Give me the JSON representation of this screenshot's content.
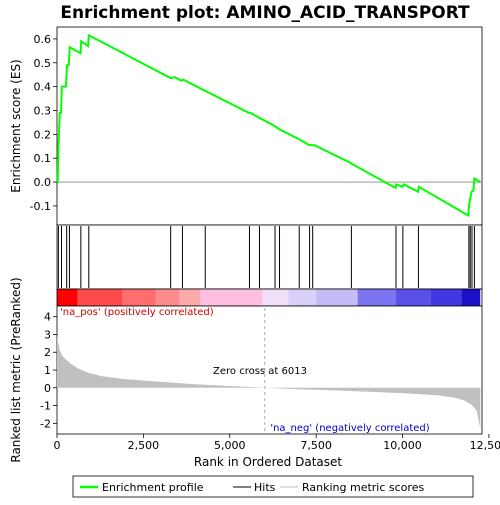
{
  "chart_data": [
    {
      "type": "line",
      "title": "Enrichment plot: AMINO_ACID_TRANSPORT",
      "ylabel": "Enrichment score (ES)",
      "ylim": [
        -0.18,
        0.65
      ],
      "yticks": [
        "-0.1",
        "0.0",
        "0.1",
        "0.2",
        "0.3",
        "0.4",
        "0.5",
        "0.6"
      ],
      "xlim": [
        0,
        12300
      ],
      "series": [
        {
          "name": "Enrichment profile",
          "color": "#00ff00",
          "points": [
            [
              0,
              0.0
            ],
            [
              20,
              0.0
            ],
            [
              40,
              0.14
            ],
            [
              80,
              0.29
            ],
            [
              120,
              0.29
            ],
            [
              140,
              0.4
            ],
            [
              260,
              0.4
            ],
            [
              290,
              0.49
            ],
            [
              340,
              0.49
            ],
            [
              370,
              0.565
            ],
            [
              680,
              0.54
            ],
            [
              700,
              0.59
            ],
            [
              900,
              0.57
            ],
            [
              920,
              0.615
            ],
            [
              3300,
              0.435
            ],
            [
              3400,
              0.44
            ],
            [
              3600,
              0.425
            ],
            [
              3650,
              0.43
            ],
            [
              4250,
              0.385
            ],
            [
              4320,
              0.38
            ],
            [
              5550,
              0.29
            ],
            [
              5600,
              0.29
            ],
            [
              5850,
              0.27
            ],
            [
              6300,
              0.235
            ],
            [
              6450,
              0.22
            ],
            [
              7000,
              0.18
            ],
            [
              7300,
              0.155
            ],
            [
              7450,
              0.155
            ],
            [
              8500,
              0.08
            ],
            [
              8550,
              0.075
            ],
            [
              9800,
              -0.025
            ],
            [
              9820,
              -0.01
            ],
            [
              10000,
              -0.02
            ],
            [
              10030,
              -0.01
            ],
            [
              10450,
              -0.04
            ],
            [
              10470,
              -0.02
            ],
            [
              11900,
              -0.14
            ],
            [
              11930,
              -0.09
            ],
            [
              12000,
              -0.04
            ],
            [
              12050,
              -0.035
            ],
            [
              12080,
              0.015
            ],
            [
              12250,
              0.0
            ]
          ]
        }
      ],
      "hits": [
        40,
        130,
        280,
        360,
        690,
        920,
        3290,
        3630,
        4290,
        5570,
        5860,
        6310,
        6440,
        7010,
        7310,
        7400,
        8520,
        9810,
        10010,
        10460,
        11920,
        11960,
        12010,
        12080
      ],
      "legend": [
        "Enrichment profile",
        "Hits",
        "Ranking metric scores"
      ]
    },
    {
      "type": "area",
      "xlabel": "Rank in Ordered Dataset",
      "ylabel": "Ranked list metric (PreRanked)",
      "ylim": [
        -2.6,
        4.6
      ],
      "yticks": [
        "-2",
        "-1",
        "0",
        "1",
        "2",
        "3",
        "4"
      ],
      "xlim": [
        0,
        12300
      ],
      "xticks": [
        "0",
        "2,500",
        "5,000",
        "7,500",
        "10,000",
        "12,500"
      ],
      "series": [
        {
          "name": "Ranking metric scores",
          "color": "#c0c0c0",
          "points": [
            [
              0,
              2.9
            ],
            [
              30,
              2.6
            ],
            [
              80,
              2.1
            ],
            [
              150,
              1.8
            ],
            [
              250,
              1.6
            ],
            [
              400,
              1.35
            ],
            [
              600,
              1.1
            ],
            [
              900,
              0.85
            ],
            [
              1300,
              0.65
            ],
            [
              2000,
              0.48
            ],
            [
              3000,
              0.33
            ],
            [
              4000,
              0.2
            ],
            [
              5000,
              0.1
            ],
            [
              6013,
              0.0
            ],
            [
              7000,
              -0.08
            ],
            [
              8000,
              -0.15
            ],
            [
              9000,
              -0.22
            ],
            [
              10000,
              -0.3
            ],
            [
              11000,
              -0.42
            ],
            [
              11500,
              -0.55
            ],
            [
              11800,
              -0.72
            ],
            [
              12000,
              -0.95
            ],
            [
              12150,
              -1.3
            ],
            [
              12250,
              -2.3
            ]
          ]
        }
      ],
      "annotations": {
        "zero_cross": "Zero cross at 6013",
        "pos_label": "'na_pos' (positively correlated)",
        "neg_label": "'na_neg' (negatively correlated)"
      },
      "zero_cross_rank": 6013
    }
  ],
  "colors": {
    "profile": "#00ff00",
    "hit": "#000000",
    "metric_fill": "#c0c0c0",
    "pos_text": "#cc0000",
    "neg_text": "#0000cc",
    "zero_line": "#aaaaaa"
  },
  "heatmap_band": [
    {
      "from": 0,
      "to": 600,
      "color": "#ff0000"
    },
    {
      "from": 600,
      "to": 1900,
      "color": "#ff4a4a"
    },
    {
      "from": 1900,
      "to": 2850,
      "color": "#ff6e6e"
    },
    {
      "from": 2850,
      "to": 3550,
      "color": "#ff8c8c"
    },
    {
      "from": 3550,
      "to": 4150,
      "color": "#ffaaaa"
    },
    {
      "from": 4150,
      "to": 5950,
      "color": "#ffc0e0"
    },
    {
      "from": 5950,
      "to": 6700,
      "color": "#f0e0f8"
    },
    {
      "from": 6700,
      "to": 7500,
      "color": "#d8d0f8"
    },
    {
      "from": 7500,
      "to": 8700,
      "color": "#c4bcf8"
    },
    {
      "from": 8700,
      "to": 9800,
      "color": "#7c74f0"
    },
    {
      "from": 9800,
      "to": 10800,
      "color": "#5a50e8"
    },
    {
      "from": 10800,
      "to": 11700,
      "color": "#4038e0"
    },
    {
      "from": 11700,
      "to": 12250,
      "color": "#1a10c8"
    }
  ]
}
